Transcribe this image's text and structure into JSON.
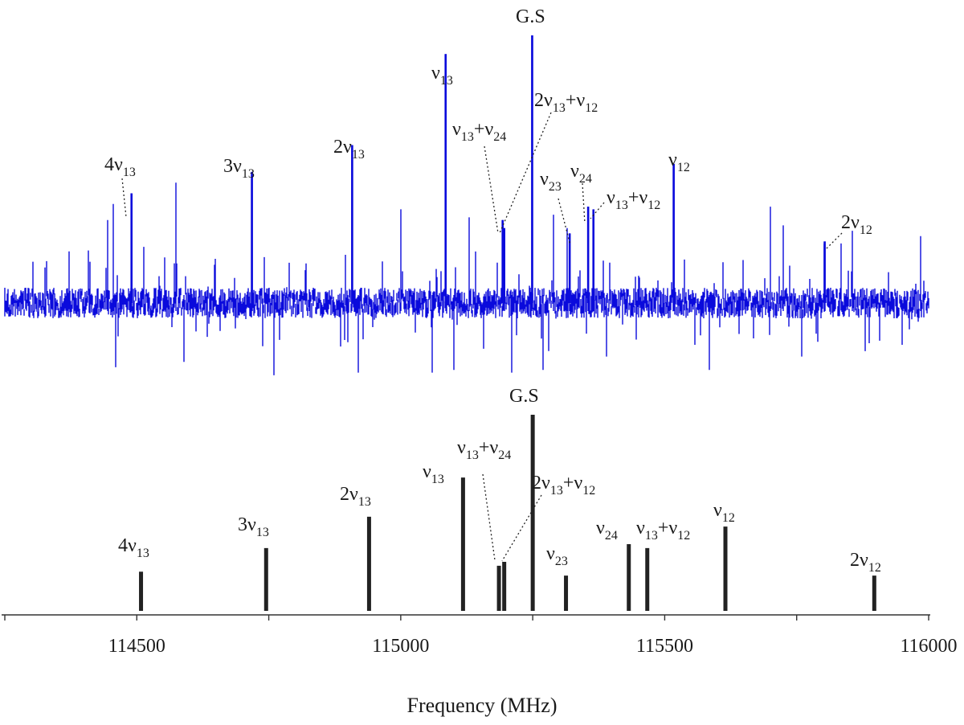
{
  "chart_data": [
    {
      "type": "line",
      "panel": "observed",
      "color": "#0a0adc",
      "baseline_note": "noisy experimental spectrum",
      "peaks": [
        {
          "label": "4ν13",
          "x": 114490,
          "y": 0.41,
          "labeled": true
        },
        {
          "label": "3ν13",
          "x": 114718,
          "y": 0.49,
          "labeled": true
        },
        {
          "label": "2ν13",
          "x": 114908,
          "y": 0.59,
          "labeled": true
        },
        {
          "label": "ν13",
          "x": 115085,
          "y": 0.93,
          "labeled": true
        },
        {
          "label": "ν13+ν24",
          "x": 115193,
          "y": 0.31,
          "labeled": true
        },
        {
          "label": "2ν13+ν12",
          "x": 115196,
          "y": 0.28,
          "labeled": true
        },
        {
          "label": "G.S",
          "x": 115249,
          "y": 1.0,
          "labeled": true
        },
        {
          "label": "ν23",
          "x": 115320,
          "y": 0.26,
          "labeled": true
        },
        {
          "label": "ν24",
          "x": 115355,
          "y": 0.36,
          "labeled": true
        },
        {
          "label": "ν13+ν12",
          "x": 115365,
          "y": 0.35,
          "labeled": true
        },
        {
          "label": "ν12",
          "x": 115517,
          "y": 0.52,
          "labeled": true
        },
        {
          "label": "2ν12",
          "x": 115803,
          "y": 0.23,
          "labeled": true
        }
      ],
      "extra_peaks": [
        {
          "x": 114455,
          "y": 0.37
        },
        {
          "x": 114445,
          "y": 0.31
        },
        {
          "x": 114574,
          "y": 0.45
        },
        {
          "x": 115000,
          "y": 0.35
        },
        {
          "x": 115130,
          "y": 0.32
        },
        {
          "x": 115290,
          "y": 0.33
        },
        {
          "x": 115315,
          "y": 0.28
        },
        {
          "x": 115700,
          "y": 0.36
        },
        {
          "x": 115725,
          "y": 0.29
        },
        {
          "x": 115855,
          "y": 0.27
        },
        {
          "x": 115985,
          "y": 0.25
        }
      ],
      "neg_peaks": [
        {
          "x": 114460,
          "y": -0.24
        },
        {
          "x": 114590,
          "y": -0.22
        },
        {
          "x": 114760,
          "y": -0.27
        },
        {
          "x": 114920,
          "y": -0.26
        },
        {
          "x": 115060,
          "y": -0.26
        },
        {
          "x": 115100,
          "y": -0.25
        },
        {
          "x": 115210,
          "y": -0.26
        },
        {
          "x": 115270,
          "y": -0.25
        },
        {
          "x": 115390,
          "y": -0.2
        },
        {
          "x": 115585,
          "y": -0.25
        },
        {
          "x": 115760,
          "y": -0.2
        },
        {
          "x": 115880,
          "y": -0.18
        }
      ]
    },
    {
      "type": "bar",
      "panel": "predicted",
      "color": "#222222",
      "xlabel": "Frequency (MHz)",
      "xlim": [
        114250,
        116000
      ],
      "xticks": [
        "114500",
        "115000",
        "115500",
        "116000"
      ],
      "xtick_values": [
        114500,
        115000,
        115500,
        116000
      ],
      "minor_step": 250,
      "bars": [
        {
          "label": "4ν13",
          "x": 114508,
          "y": 0.2
        },
        {
          "label": "3ν13",
          "x": 114745,
          "y": 0.32
        },
        {
          "label": "2ν13",
          "x": 114940,
          "y": 0.48
        },
        {
          "label": "ν13",
          "x": 115118,
          "y": 0.68
        },
        {
          "label": "ν13+ν24",
          "x": 115186,
          "y": 0.23
        },
        {
          "label": "2ν13+ν12",
          "x": 115196,
          "y": 0.25
        },
        {
          "label": "G.S",
          "x": 115250,
          "y": 1.0
        },
        {
          "label": "ν23",
          "x": 115313,
          "y": 0.18
        },
        {
          "label": "ν24",
          "x": 115432,
          "y": 0.34
        },
        {
          "label": "ν13+ν12",
          "x": 115467,
          "y": 0.32
        },
        {
          "label": "ν12",
          "x": 115615,
          "y": 0.43
        },
        {
          "label": "2ν12",
          "x": 115897,
          "y": 0.18
        }
      ]
    }
  ],
  "labels": {
    "obs": {
      "gs": "G.S",
      "nu13": {
        "base": "ν",
        "sub": "13"
      },
      "nu13nu24": [
        {
          "base": "ν",
          "sub": "13"
        },
        {
          "base": "+ν",
          "sub": "24"
        }
      ],
      "twonu13nu12": [
        {
          "base": "2ν",
          "sub": "13"
        },
        {
          "base": "+ν",
          "sub": "12"
        }
      ],
      "twonu13": {
        "base": "2ν",
        "sub": "13"
      },
      "threenu13": {
        "base": "3ν",
        "sub": "13"
      },
      "fournu13": {
        "base": "4ν",
        "sub": "13"
      },
      "nu23": {
        "base": "ν",
        "sub": "23"
      },
      "nu24": {
        "base": "ν",
        "sub": "24"
      },
      "nu13nu12": [
        {
          "base": "ν",
          "sub": "13"
        },
        {
          "base": "+ν",
          "sub": "12"
        }
      ],
      "nu12": {
        "base": "ν",
        "sub": "12"
      },
      "twonu12": {
        "base": "2ν",
        "sub": "12"
      }
    }
  }
}
